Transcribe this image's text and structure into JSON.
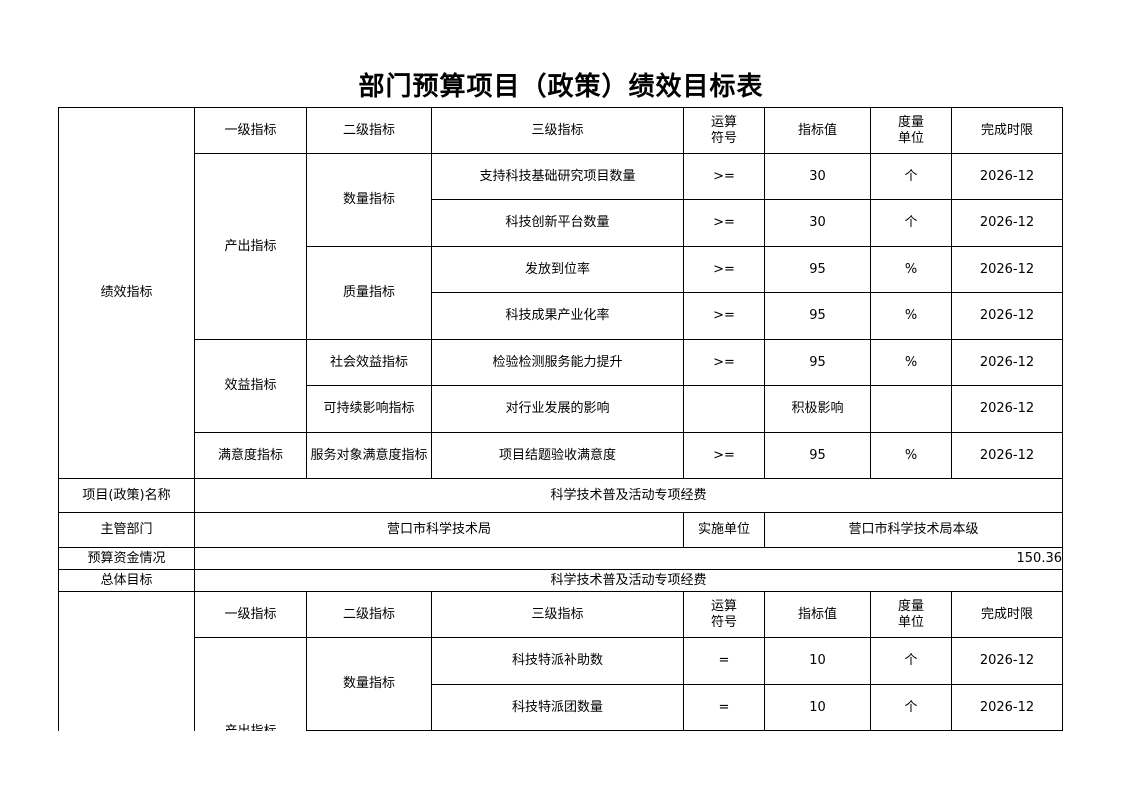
{
  "title": "部门预算项目（政策）绩效目标表",
  "headers": {
    "level1": "一级指标",
    "level2": "二级指标",
    "level3": "三级指标",
    "operator": "运算\n符号",
    "value": "指标值",
    "unit": "度量\n单位",
    "deadline": "完成时限"
  },
  "top_section": {
    "label": "绩效指标",
    "groups": {
      "output": "产出指标",
      "benefit": "效益指标",
      "satisfaction": "满意度指标"
    },
    "subgroups": {
      "quantity": "数量指标",
      "quality": "质量指标",
      "social": "社会效益指标",
      "sustainable": "可持续影响指标",
      "service": "服务对象满意度指标"
    },
    "rows": [
      {
        "name": "支持科技基础研究项目数量",
        "op": ">=",
        "value": "30",
        "unit": "个",
        "deadline": "2026-12"
      },
      {
        "name": "科技创新平台数量",
        "op": ">=",
        "value": "30",
        "unit": "个",
        "deadline": "2026-12"
      },
      {
        "name": "发放到位率",
        "op": ">=",
        "value": "95",
        "unit": "%",
        "deadline": "2026-12"
      },
      {
        "name": "科技成果产业化率",
        "op": ">=",
        "value": "95",
        "unit": "%",
        "deadline": "2026-12"
      },
      {
        "name": "检验检测服务能力提升",
        "op": ">=",
        "value": "95",
        "unit": "%",
        "deadline": "2026-12"
      },
      {
        "name": "对行业发展的影响",
        "op": "",
        "value": "积极影响",
        "unit": "",
        "deadline": "2026-12"
      },
      {
        "name": "项目结题验收满意度",
        "op": ">=",
        "value": "95",
        "unit": "%",
        "deadline": "2026-12"
      }
    ]
  },
  "project": {
    "name_label": "项目(政策)名称",
    "name": "科学技术普及活动专项经费",
    "dept_label": "主管部门",
    "dept": "营口市科学技术局",
    "impl_label": "实施单位",
    "impl": "营口市科学技术局本级",
    "budget_label": "预算资金情况",
    "budget": "150.36",
    "goal_label": "总体目标",
    "goal": "科学技术普及活动专项经费"
  },
  "bottom_section": {
    "group": "产出指标",
    "subgroup": "数量指标",
    "rows": [
      {
        "name": "科技特派补助数",
        "op": "=",
        "value": "10",
        "unit": "个",
        "deadline": "2026-12"
      },
      {
        "name": "科技特派团数量",
        "op": "=",
        "value": "10",
        "unit": "个",
        "deadline": "2026-12"
      }
    ]
  }
}
